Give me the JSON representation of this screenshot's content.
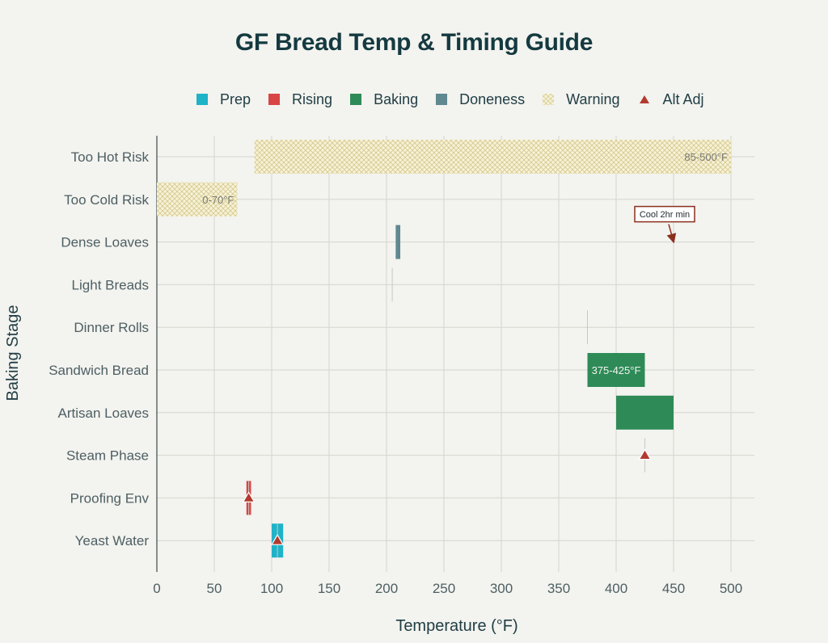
{
  "title": "GF Bread Temp & Timing Guide",
  "legend": [
    {
      "label": "Prep",
      "color": "#1fb3c8",
      "kind": "box"
    },
    {
      "label": "Rising",
      "color": "#d94444",
      "kind": "box"
    },
    {
      "label": "Baking",
      "color": "#2e8b57",
      "kind": "box"
    },
    {
      "label": "Doneness",
      "color": "#5f8890",
      "kind": "box"
    },
    {
      "label": "Warning",
      "color": "#f6f2d8",
      "kind": "hatch"
    },
    {
      "label": "Alt Adj",
      "color": "#b23a2e",
      "kind": "triangle"
    }
  ],
  "chart_data": {
    "type": "bar",
    "orientation": "horizontal",
    "title": "GF Bread Temp & Timing Guide",
    "xlabel": "Temperature (°F)",
    "ylabel": "Baking Stage",
    "xlim": [
      0,
      520
    ],
    "xticks": [
      0,
      50,
      100,
      150,
      200,
      250,
      300,
      350,
      400,
      450,
      500
    ],
    "grid": true,
    "legend_position": "top",
    "categories": [
      "Too Hot Risk",
      "Too Cold Risk",
      "Dense Loaves",
      "Light Breads",
      "Dinner Rolls",
      "Sandwich Bread",
      "Artisan Loaves",
      "Steam Phase",
      "Proofing Env",
      "Yeast Water"
    ],
    "bars": [
      {
        "category": "Too Hot Risk",
        "series": "Warning",
        "start": 85,
        "end": 500,
        "label": "85-500°F"
      },
      {
        "category": "Too Cold Risk",
        "series": "Warning",
        "start": 0,
        "end": 70,
        "label": "0-70°F"
      },
      {
        "category": "Dense Loaves",
        "series": "Doneness",
        "start": 208,
        "end": 212
      },
      {
        "category": "Light Breads",
        "series": "Doneness",
        "start": 205,
        "end": 205
      },
      {
        "category": "Dinner Rolls",
        "series": "Baking",
        "start": 375,
        "end": 375
      },
      {
        "category": "Sandwich Bread",
        "series": "Baking",
        "start": 375,
        "end": 425,
        "label": "375-425°F"
      },
      {
        "category": "Artisan Loaves",
        "series": "Baking",
        "start": 400,
        "end": 450
      },
      {
        "category": "Steam Phase",
        "series": "Baking",
        "start": 425,
        "end": 425
      },
      {
        "category": "Proofing Env",
        "series": "Rising",
        "start": 78,
        "end": 82
      },
      {
        "category": "Yeast Water",
        "series": "Prep",
        "start": 100,
        "end": 110
      }
    ],
    "markers": [
      {
        "category": "Steam Phase",
        "series": "Alt Adj",
        "x": 425
      },
      {
        "category": "Proofing Env",
        "series": "Alt Adj",
        "x": 80
      },
      {
        "category": "Yeast Water",
        "series": "Alt Adj",
        "x": 105
      }
    ],
    "annotations": [
      {
        "text": "Cool 2hr min",
        "x": 450,
        "category": "Dense Loaves"
      }
    ]
  }
}
